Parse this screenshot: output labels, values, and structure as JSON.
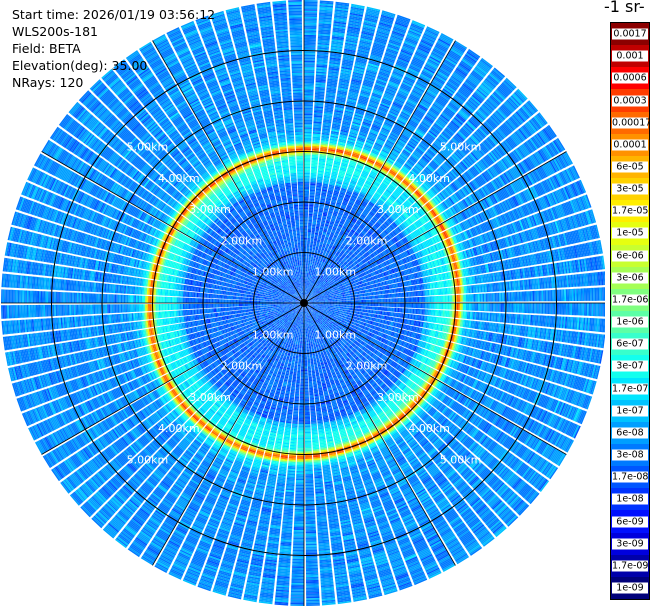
{
  "info": {
    "start_time": "Start time: 2026/01/19 03:56:12",
    "instrument": "WLS200s-181",
    "field": "Field: BETA",
    "elevation": "Elevation(deg): 35.00",
    "nrays": "NRays: 120"
  },
  "colorbar": {
    "title": "-1 sr-",
    "labels": [
      "0.0017",
      "0.001",
      "0.0006",
      "0.0003",
      "0.00017",
      "0.0001",
      "6e-05",
      "3e-05",
      "1.7e-05",
      "1e-05",
      "6e-06",
      "3e-06",
      "1.7e-06",
      "1e-06",
      "6e-07",
      "3e-07",
      "1.7e-07",
      "1e-07",
      "6e-08",
      "3e-08",
      "1.7e-08",
      "1e-08",
      "6e-09",
      "3e-09",
      "1.7e-09",
      "1e-09"
    ],
    "colors": [
      "#8b0000",
      "#c00000",
      "#ff0000",
      "#ff3c00",
      "#ff6a00",
      "#ff9100",
      "#ffb400",
      "#ffd200",
      "#ffee00",
      "#e6ff10",
      "#c8ff30",
      "#a5ff55",
      "#80ff80",
      "#5cffa6",
      "#38ffcc",
      "#14ffee",
      "#00e6ff",
      "#00c3ff",
      "#009fff",
      "#007aff",
      "#0056ff",
      "#0033ff",
      "#0010ff",
      "#0000dd",
      "#0000aa",
      "#00007a"
    ]
  },
  "chart_data": {
    "type": "heatmap",
    "projection": "polar (PPI)",
    "field": "BETA",
    "elevation_deg": 35.0,
    "n_rays": 120,
    "range_max_km": 6.0,
    "range_rings_km": [
      1.0,
      2.0,
      3.0,
      4.0,
      5.0
    ],
    "range_ring_labels": [
      "1.00km",
      "2.00km",
      "3.00km",
      "4.00km",
      "5.00km"
    ],
    "azimuth_lines_deg": [
      0,
      30,
      60,
      90,
      120,
      150,
      180,
      210,
      240,
      270,
      300,
      330
    ],
    "value_range": [
      1e-09,
      0.0017
    ],
    "scale": "log",
    "features": [
      {
        "description": "strong backscatter ring",
        "range_km": 3.05,
        "approx_beta": 0.0003
      },
      {
        "description": "near-field background",
        "range_km_max": 2.4,
        "approx_beta": 3e-08
      },
      {
        "description": "far-field background",
        "range_km_min": 3.3,
        "approx_beta": 6e-08
      }
    ]
  }
}
